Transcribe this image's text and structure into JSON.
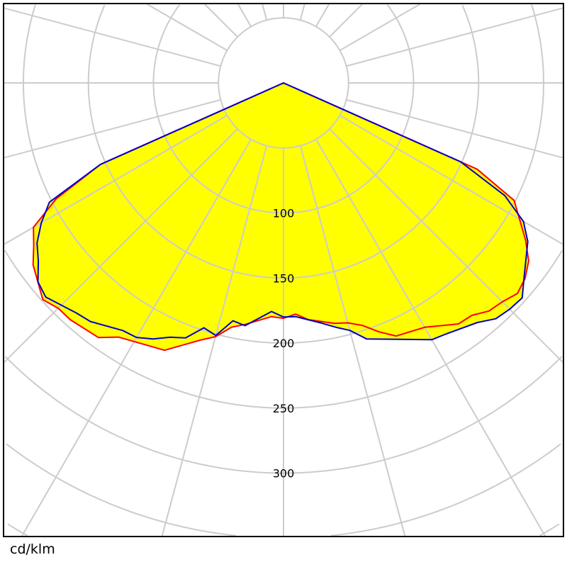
{
  "chart_data": {
    "type": "polar",
    "unit_label": "cd/klm",
    "radial_ticks": [
      100,
      150,
      200,
      250,
      300
    ],
    "ring_step": 50,
    "spoke_step_deg": 15,
    "grid": true,
    "fill_color": "#ffff00",
    "grid_color": "#cccccc",
    "series": [
      {
        "color": "#ff0000",
        "points": [
          [
            -90,
            0
          ],
          [
            -66,
            154
          ],
          [
            -63,
            196
          ],
          [
            -60,
            222
          ],
          [
            -57,
            229
          ],
          [
            -54,
            238
          ],
          [
            -48,
            249
          ],
          [
            -45,
            245
          ],
          [
            -42,
            245
          ],
          [
            -36,
            242
          ],
          [
            -33,
            233
          ],
          [
            -24,
            225
          ],
          [
            -18,
            208
          ],
          [
            -15,
            202
          ],
          [
            -12,
            192
          ],
          [
            -9,
            188
          ],
          [
            -3,
            180
          ],
          [
            0,
            181
          ],
          [
            3,
            178
          ],
          [
            6,
            183
          ],
          [
            12,
            189
          ],
          [
            15,
            191
          ],
          [
            18,
            196
          ],
          [
            21,
            205
          ],
          [
            24,
            213
          ],
          [
            30,
            217
          ],
          [
            36,
            229
          ],
          [
            39,
            230
          ],
          [
            42,
            236
          ],
          [
            45,
            238
          ],
          [
            48,
            242
          ],
          [
            51,
            239
          ],
          [
            54,
            233
          ],
          [
            57,
            222
          ],
          [
            63,
            199
          ],
          [
            66,
            163
          ],
          [
            90,
            0
          ]
        ]
      },
      {
        "color": "#0000cc",
        "points": [
          [
            -90,
            0
          ],
          [
            -66,
            154
          ],
          [
            -63,
            202
          ],
          [
            -60,
            215
          ],
          [
            -57,
            226
          ],
          [
            -54,
            233
          ],
          [
            -51,
            243
          ],
          [
            -48,
            246
          ],
          [
            -42,
            238
          ],
          [
            -39,
            236
          ],
          [
            -33,
            227
          ],
          [
            -30,
            226
          ],
          [
            -27,
            221
          ],
          [
            -24,
            214
          ],
          [
            -21,
            210
          ],
          [
            -18,
            198
          ],
          [
            -15,
            201
          ],
          [
            -12,
            187
          ],
          [
            -9,
            189
          ],
          [
            -3,
            176
          ],
          [
            0,
            180
          ],
          [
            3,
            180
          ],
          [
            9,
            187
          ],
          [
            12,
            192
          ],
          [
            15,
            197
          ],
          [
            18,
            207
          ],
          [
            30,
            228
          ],
          [
            33,
            230
          ],
          [
            39,
            237
          ],
          [
            42,
            244
          ],
          [
            45,
            246
          ],
          [
            48,
            247
          ],
          [
            51,
            238
          ],
          [
            57,
            224
          ],
          [
            60,
            213
          ],
          [
            63,
            191
          ],
          [
            66,
            149
          ],
          [
            90,
            0
          ]
        ]
      }
    ]
  }
}
